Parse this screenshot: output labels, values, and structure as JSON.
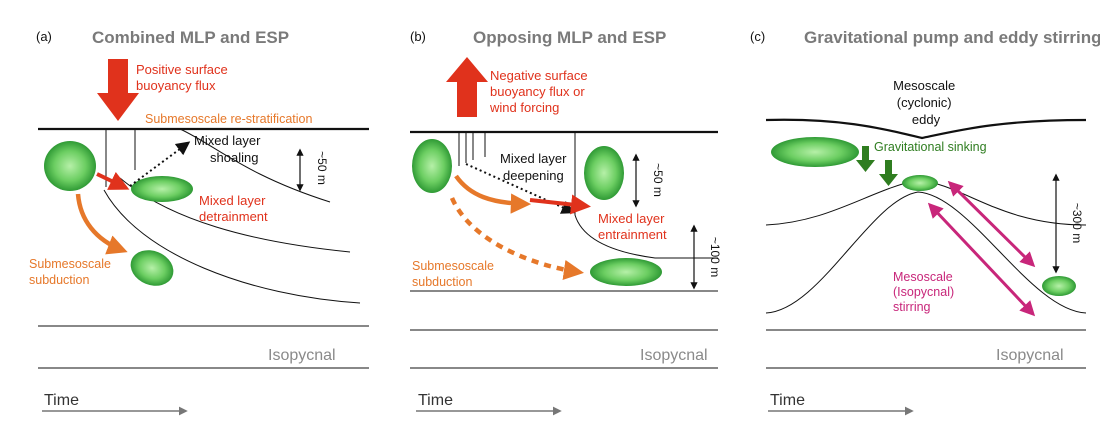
{
  "colors": {
    "red": "#e0321c",
    "orange": "#e6782a",
    "green": "#2f7d20",
    "magenta": "#c8267a",
    "gray": "#8a8a8a",
    "eddy_light": "#a6e99a",
    "eddy_dark": "#2f9a35"
  },
  "panels": {
    "a": {
      "letter": "(a)",
      "title": "Combined MLP and ESP",
      "forcing": [
        "Positive surface",
        "buoyancy flux"
      ],
      "restrat": "Submesoscale re-stratification",
      "mixed_layer": [
        "Mixed layer",
        "shoaling"
      ],
      "detrain": [
        "Mixed layer",
        "detrainment"
      ],
      "subduction": [
        "Submesoscale",
        "subduction"
      ],
      "depth": "~50 m",
      "isopycnal": "Isopycnal",
      "time": "Time"
    },
    "b": {
      "letter": "(b)",
      "title": "Opposing MLP and ESP",
      "forcing": [
        "Negative surface",
        "buoyancy flux or",
        "wind forcing"
      ],
      "mixed_layer": [
        "Mixed layer",
        "deepening"
      ],
      "entrain": [
        "Mixed layer",
        "entrainment"
      ],
      "subduction": [
        "Submesoscale",
        "subduction"
      ],
      "depth_ml": "~50 m",
      "depth_deep": "~100 m",
      "isopycnal": "Isopycnal",
      "time": "Time"
    },
    "c": {
      "letter": "(c)",
      "title": "Gravitational pump and eddy stirring",
      "eddy": [
        "Mesoscale",
        "(cyclonic)",
        "eddy"
      ],
      "sinking": "Gravitational sinking",
      "stirring": [
        "Mesoscale",
        "(Isopycnal)",
        "stirring"
      ],
      "depth": "~300 m",
      "isopycnal": "Isopycnal",
      "time": "Time"
    }
  }
}
